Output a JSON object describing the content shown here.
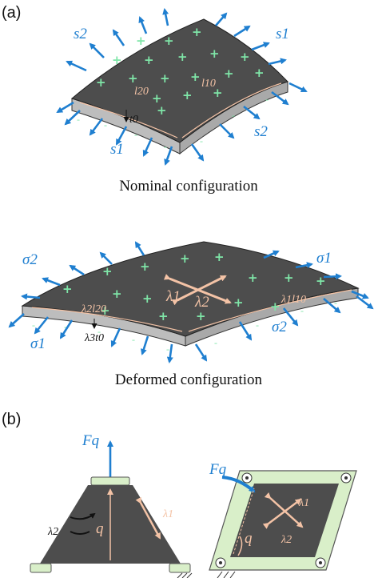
{
  "panel_a": {
    "label": "(a)",
    "nominal": {
      "caption": "Nominal configuration",
      "labels": {
        "s2_left": "s2",
        "s1_right": "s1",
        "s1_bottom": "s1",
        "s2_bottom": "s2",
        "l20": "l20",
        "l10": "l10",
        "t0": "t0"
      }
    },
    "deformed": {
      "caption": "Deformed configuration",
      "labels": {
        "sigma2_left": "σ2",
        "sigma1_right": "σ1",
        "sigma1_bottom": "σ1",
        "sigma2_bottom": "σ2",
        "lambda1": "λ1",
        "lambda2": "λ2",
        "l2l20": "λ2l20",
        "l1l10": "λ1l10",
        "l3t0": "λ3t0"
      }
    }
  },
  "panel_b": {
    "label": "(b)",
    "left": {
      "force": "Fq",
      "lambda1": "λ1",
      "lambda2": "λ2",
      "q": "q"
    },
    "right": {
      "force": "Fq",
      "lambda1": "λ1",
      "lambda2": "λ2",
      "q": "q"
    }
  },
  "colors": {
    "membrane": "#4d4d4d",
    "edge": "#bdbdbd",
    "arrow": "#1f7fd0",
    "frame": "#d9efc9",
    "annot": "#f4c3a6",
    "plus": "#7fe6a8"
  }
}
